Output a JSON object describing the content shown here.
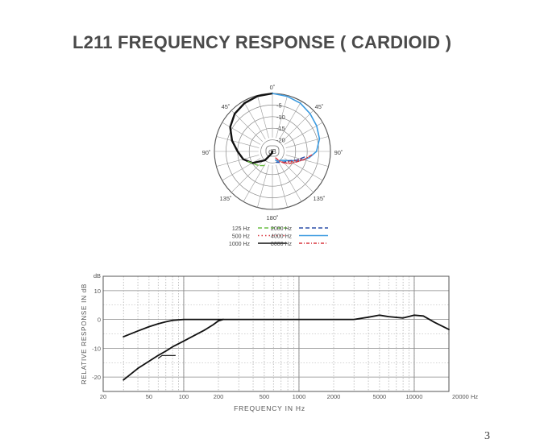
{
  "page": {
    "title": "L211 FREQUENCY RESPONSE ( CARDIOID )",
    "page_number": "3"
  },
  "chart_data": [
    {
      "type": "polar",
      "angle_labels": [
        "0˚",
        "45˚",
        "45˚",
        "90˚",
        "90˚",
        "135˚",
        "135˚",
        "180˚"
      ],
      "ring_labels": [
        "-5",
        "-10",
        "-15",
        "-20"
      ],
      "center_label": "dB",
      "ring_values_db": [
        0,
        -5,
        -10,
        -15,
        -20,
        -25
      ],
      "legend": [
        {
          "label": "125 Hz",
          "color": "#6cbf45",
          "style": "dashed"
        },
        {
          "label": "500 Hz",
          "color": "#d9363e",
          "style": "dotted"
        },
        {
          "label": "1000 Hz",
          "color": "#111111",
          "style": "solid"
        },
        {
          "label": "2000 Hz",
          "color": "#2b4fa8",
          "style": "dashed"
        },
        {
          "label": "4000 Hz",
          "color": "#3a9ae0",
          "style": "solid"
        },
        {
          "label": "8000 Hz",
          "color": "#d9363e",
          "style": "dashdot"
        }
      ],
      "series": [
        {
          "name": "1000 Hz",
          "color": "#111111",
          "dash": "",
          "width": 2.4,
          "angles": [
            -180,
            -160,
            -140,
            -120,
            -105,
            -90,
            -75,
            -60,
            -45,
            -30,
            -15,
            0
          ],
          "values": [
            -26,
            -24,
            -20,
            -15,
            -12,
            -10,
            -7,
            -4,
            -2,
            -1,
            -0.3,
            0
          ]
        },
        {
          "name": "125 Hz",
          "color": "#6cbf45",
          "dash": "5,3",
          "width": 1.4,
          "angles": [
            -150,
            -140,
            -130,
            -120,
            -110
          ],
          "values": [
            -18,
            -17,
            -16,
            -15,
            -13
          ]
        },
        {
          "name": "4000 Hz",
          "color": "#3a9ae0",
          "dash": "",
          "width": 1.6,
          "angles": [
            0,
            15,
            30,
            45,
            60,
            75,
            90,
            100,
            110,
            120,
            130,
            140,
            150,
            160
          ],
          "values": [
            0,
            -0.4,
            -1,
            -2,
            -3,
            -4,
            -6,
            -9,
            -13,
            -17,
            -19,
            -20,
            -20,
            -21
          ]
        },
        {
          "name": "2000 Hz",
          "color": "#2b4fa8",
          "dash": "5,3",
          "width": 1.4,
          "angles": [
            100,
            110,
            120,
            130,
            140,
            150,
            160
          ],
          "values": [
            -11,
            -14,
            -17,
            -18,
            -19,
            -19.5,
            -20
          ]
        },
        {
          "name": "8000 Hz",
          "color": "#d9363e",
          "dash": "4,2,1,2",
          "width": 1.4,
          "angles": [
            95,
            105,
            115,
            125,
            135,
            145,
            155
          ],
          "values": [
            -8,
            -11,
            -14,
            -16,
            -18,
            -20,
            -22
          ]
        },
        {
          "name": "500 Hz",
          "color": "#d9363e",
          "dash": "1,3",
          "width": 1.4,
          "angles": [
            105,
            115,
            125,
            135
          ],
          "values": [
            -12,
            -15,
            -17,
            -18
          ]
        }
      ]
    },
    {
      "type": "line",
      "xscale": "log",
      "xlim": [
        20,
        20000
      ],
      "ylim": [
        -25,
        15
      ],
      "x_tick_values": [
        20,
        50,
        100,
        200,
        500,
        1000,
        2000,
        5000,
        10000,
        20000
      ],
      "x_tick_labels": [
        "20",
        "50",
        "100",
        "200",
        "500",
        "1000",
        "2000",
        "5000",
        "10000",
        "20000 Hz"
      ],
      "y_tick_values": [
        10,
        0,
        -10,
        -20
      ],
      "y_tick_labels": [
        "10",
        "0",
        "-10",
        "-20"
      ],
      "y_unit": "dB",
      "xlabel": "FREQUENCY IN Hz",
      "ylabel": "RELATIVE RESPONSE IN dB",
      "grid": true,
      "series": [
        {
          "x": [
            30,
            40,
            50,
            60,
            70,
            80,
            100,
            200,
            500,
            1000,
            2000,
            3000,
            4000,
            5000,
            6000,
            8000,
            10000,
            12000,
            15000,
            20000
          ],
          "y": [
            -6,
            -4,
            -2.5,
            -1.5,
            -0.8,
            -0.3,
            0,
            0,
            0,
            0,
            0,
            0,
            0.8,
            1.5,
            1,
            0.5,
            1.5,
            1.2,
            -1,
            -3.5
          ]
        },
        {
          "x": [
            30,
            40,
            50,
            60,
            70,
            80,
            100,
            120,
            150,
            180,
            200,
            220
          ],
          "y": [
            -21,
            -17,
            -14.5,
            -12.5,
            -11,
            -9.5,
            -7.5,
            -5.8,
            -3.8,
            -1.8,
            -0.5,
            0
          ]
        }
      ],
      "marker": {
        "x": [
          60,
          65,
          85
        ],
        "y": [
          -13.5,
          -12.5,
          -12.5
        ]
      }
    }
  ]
}
